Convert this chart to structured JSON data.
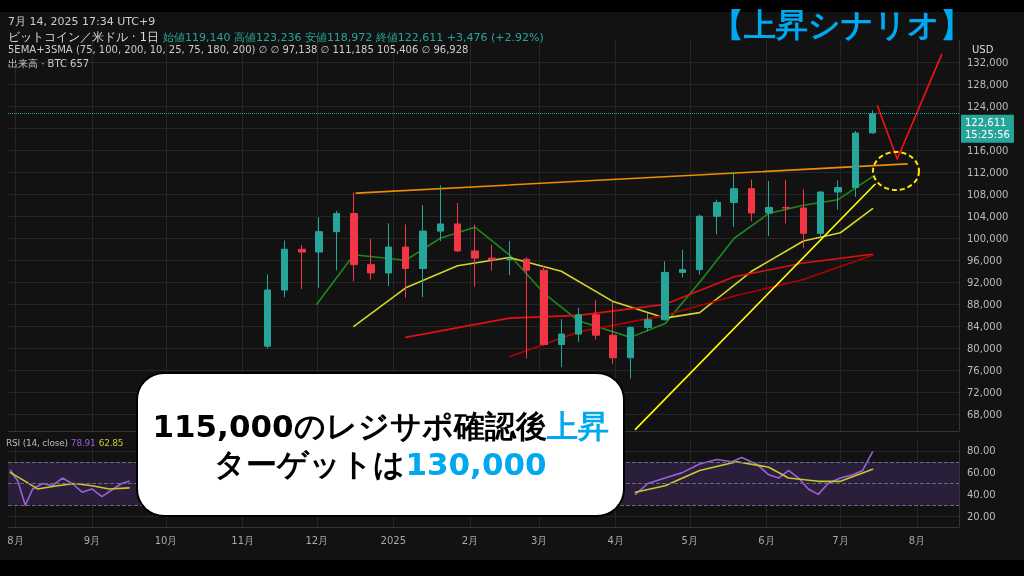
{
  "chart_data": [
    {
      "type": "candlestick",
      "title": "ビットコイン／米ドル · 1日",
      "subtitle": "7月 14, 2025 17:34 UTC+9",
      "ylabel": "USD",
      "x": [
        "2024-11-11",
        "2024-11-18",
        "2024-11-25",
        "2024-12-02",
        "2024-12-09",
        "2024-12-16",
        "2024-12-23",
        "2024-12-30",
        "2025-01-06",
        "2025-01-13",
        "2025-01-20",
        "2025-01-27",
        "2025-02-03",
        "2025-02-10",
        "2025-02-17",
        "2025-02-24",
        "2025-03-03",
        "2025-03-10",
        "2025-03-17",
        "2025-03-24",
        "2025-03-31",
        "2025-04-07",
        "2025-04-14",
        "2025-04-21",
        "2025-04-28",
        "2025-05-05",
        "2025-05-12",
        "2025-05-19",
        "2025-05-26",
        "2025-06-02",
        "2025-06-09",
        "2025-06-16",
        "2025-06-23",
        "2025-06-30",
        "2025-07-07",
        "2025-07-14"
      ],
      "ohlc": [
        [
          80400,
          93400,
          80000,
          90600
        ],
        [
          90600,
          99600,
          89300,
          98000
        ],
        [
          98000,
          98800,
          90800,
          97500
        ],
        [
          97500,
          103800,
          91000,
          101200
        ],
        [
          101200,
          105000,
          94200,
          104500
        ],
        [
          104500,
          108300,
          92200,
          95200
        ],
        [
          95200,
          99900,
          92500,
          93700
        ],
        [
          93700,
          102700,
          91300,
          98400
        ],
        [
          98400,
          102500,
          89200,
          94500
        ],
        [
          94500,
          106000,
          89300,
          101300
        ],
        [
          101300,
          109600,
          99500,
          102600
        ],
        [
          102600,
          106400,
          97500,
          97700
        ],
        [
          97700,
          102500,
          91200,
          96400
        ],
        [
          96400,
          98800,
          94100,
          96100
        ],
        [
          96100,
          99500,
          93300,
          96200
        ],
        [
          96200,
          96500,
          78200,
          94200
        ],
        [
          94200,
          95000,
          80500,
          80700
        ],
        [
          80700,
          85300,
          76600,
          82600
        ],
        [
          82600,
          87400,
          81200,
          86100
        ],
        [
          86100,
          88800,
          81600,
          82400
        ],
        [
          82400,
          88500,
          77100,
          78300
        ],
        [
          78300,
          84000,
          74500,
          83800
        ],
        [
          83800,
          86400,
          83100,
          85200
        ],
        [
          85200,
          95800,
          85100,
          93800
        ],
        [
          93800,
          97900,
          92900,
          94300
        ],
        [
          94300,
          104300,
          93400,
          104000
        ],
        [
          104000,
          107000,
          100700,
          106500
        ],
        [
          106500,
          112000,
          102100,
          109000
        ],
        [
          109000,
          110700,
          103100,
          104600
        ],
        [
          104600,
          110400,
          100400,
          105600
        ],
        [
          105600,
          110600,
          102700,
          105500
        ],
        [
          105500,
          108900,
          98200,
          100900
        ],
        [
          100900,
          108500,
          100200,
          108400
        ],
        [
          108400,
          110500,
          105200,
          109200
        ],
        [
          109200,
          119500,
          107500,
          119100
        ],
        [
          119140,
          123236,
          118972,
          122611
        ]
      ],
      "series": [
        {
          "type": "line",
          "color": "#1b8a1b",
          "x": [
            "2024-12-01",
            "2024-12-16",
            "2025-01-06",
            "2025-01-20",
            "2025-02-03",
            "2025-02-17",
            "2025-03-03",
            "2025-03-17",
            "2025-04-07",
            "2025-04-21",
            "2025-05-05",
            "2025-05-19",
            "2025-06-02",
            "2025-06-16",
            "2025-06-30",
            "2025-07-14"
          ],
          "values": [
            88000,
            97000,
            96000,
            100000,
            102000,
            97000,
            90000,
            85000,
            82000,
            84500,
            92000,
            100000,
            104500,
            106000,
            107000,
            111200
          ]
        },
        {
          "type": "line",
          "color": "#d4d42a",
          "x": [
            "2024-12-16",
            "2025-01-06",
            "2025-01-27",
            "2025-02-17",
            "2025-03-10",
            "2025-03-31",
            "2025-04-21",
            "2025-05-05",
            "2025-05-26",
            "2025-06-16",
            "2025-07-01",
            "2025-07-14"
          ],
          "values": [
            84000,
            91000,
            95000,
            96500,
            94000,
            88500,
            85500,
            86500,
            94000,
            99500,
            101000,
            105400
          ]
        },
        {
          "type": "line",
          "color": "#e01010",
          "x": [
            "2025-01-06",
            "2025-02-17",
            "2025-03-17",
            "2025-04-21",
            "2025-05-19",
            "2025-06-16",
            "2025-07-14"
          ],
          "values": [
            82000,
            85500,
            86000,
            88000,
            93000,
            95500,
            97100
          ]
        },
        {
          "type": "line",
          "color": "#b00000",
          "x": [
            "2025-02-17",
            "2025-03-17",
            "2025-04-21",
            "2025-05-19",
            "2025-06-16",
            "2025-07-14"
          ],
          "values": [
            78500,
            83000,
            86000,
            89500,
            92500,
            96900
          ]
        },
        {
          "type": "line",
          "color": "#f08c00",
          "x": [
            "2024-12-17",
            "2025-07-28"
          ],
          "values": [
            108200,
            113500
          ]
        },
        {
          "type": "line",
          "color": "#ffff00",
          "x": [
            "2025-04-09",
            "2025-07-15"
          ],
          "values": [
            65300,
            109800
          ]
        },
        {
          "type": "line",
          "color": "#ff1010",
          "x": [
            "2025-07-16",
            "2025-07-24",
            "2025-08-11"
          ],
          "values": [
            124000,
            114400,
            133400
          ]
        }
      ],
      "xlim": [
        "2024-07-29",
        "2025-08-18"
      ],
      "xticks": [
        {
          "value": "2024-08-01",
          "label": null
        },
        {
          "value": "2024-09-01",
          "label": null
        },
        {
          "value": "2024-10-01",
          "label": null
        },
        {
          "value": "2024-11-01",
          "label": null
        },
        {
          "value": "2024-12-01",
          "label": null
        },
        {
          "value": "2025-01-01",
          "label": null
        },
        {
          "value": "2025-02-01",
          "label": null
        },
        {
          "value": "2025-03-01",
          "label": null
        },
        {
          "value": "2025-04-01",
          "label": null
        },
        {
          "value": "2025-05-01",
          "label": null
        },
        {
          "value": "2025-06-01",
          "label": null
        },
        {
          "value": "2025-07-01",
          "label": null
        },
        {
          "value": "2025-08-01",
          "label": null
        }
      ],
      "ylim": [
        65000,
        136000
      ],
      "yticks": [
        {
          "value": 68000,
          "label": "68,000"
        },
        {
          "value": 72000,
          "label": "72,000"
        },
        {
          "value": 76000,
          "label": "76,000"
        },
        {
          "value": 80000,
          "label": "80,000"
        },
        {
          "value": 84000,
          "label": "84,000"
        },
        {
          "value": 88000,
          "label": "88,000"
        },
        {
          "value": 92000,
          "label": "92,000"
        },
        {
          "value": 96000,
          "label": "96,000"
        },
        {
          "value": 100000,
          "label": "100,000"
        },
        {
          "value": 104000,
          "label": "104,000"
        },
        {
          "value": 108000,
          "label": "108,000"
        },
        {
          "value": 112000,
          "label": "112,000"
        },
        {
          "value": 116000,
          "label": "116,000"
        },
        {
          "value": 120000,
          "label": null
        },
        {
          "value": 124000,
          "label": "124,000"
        },
        {
          "value": 128000,
          "label": "128,000"
        },
        {
          "value": 132000,
          "label": "132,000"
        }
      ],
      "ref_lines": [
        {
          "axis": "y",
          "value": 122611,
          "label": "122,611\n15:25:56",
          "color": "#26a69a",
          "line_style": "dotted"
        }
      ],
      "annotations": [
        "始値119,140 高値123,236 安値118,972 終値122,611 +3,476 (+2.92%)",
        "5EMA+3SMA (75, 100, 200, 10, 25, 75, 180, 200) ∅ ∅ 97,138 ∅ 111,185 105,406 ∅ 96,928",
        "出来高 · BTC 657",
        "【上昇シナリオ】",
        "115,000のレジサポ確認後",
        "上昇",
        "ターゲットは",
        "130,000"
      ],
      "grid": true,
      "tick_labels": "y"
    },
    {
      "type": "line",
      "title": "RSI (14, close)",
      "series": [
        {
          "color": "#9c5fd6",
          "x": [
            "2024-07-30",
            "2024-08-02",
            "2024-08-05",
            "2024-08-08",
            "2024-08-12",
            "2024-08-16",
            "2024-08-20",
            "2024-08-24",
            "2024-08-28",
            "2024-09-01",
            "2024-09-05",
            "2024-09-09",
            "2024-09-13",
            "2024-09-16",
            "2025-04-05",
            "2025-04-09",
            "2025-04-14",
            "2025-04-21",
            "2025-04-28",
            "2025-05-05",
            "2025-05-12",
            "2025-05-18",
            "2025-05-22",
            "2025-05-28",
            "2025-06-02",
            "2025-06-06",
            "2025-06-10",
            "2025-06-14",
            "2025-06-18",
            "2025-06-22",
            "2025-06-26",
            "2025-07-01",
            "2025-07-06",
            "2025-07-10",
            "2025-07-14"
          ],
          "values": [
            62,
            52,
            30,
            45,
            50,
            48,
            55,
            50,
            42,
            45,
            38,
            44,
            50,
            52,
            null,
            40,
            50,
            55,
            60,
            68,
            72,
            70,
            74,
            68,
            58,
            55,
            62,
            55,
            45,
            40,
            50,
            55,
            58,
            62,
            79
          ]
        },
        {
          "color": "#c8c832",
          "x": [
            "2024-07-30",
            "2024-08-05",
            "2024-08-10",
            "2024-08-18",
            "2024-08-25",
            "2024-09-01",
            "2024-09-08",
            "2024-09-16",
            "2025-04-05",
            "2025-04-09",
            "2025-04-21",
            "2025-05-05",
            "2025-05-20",
            "2025-06-02",
            "2025-06-10",
            "2025-06-22",
            "2025-07-01",
            "2025-07-14"
          ],
          "values": [
            60,
            52,
            45,
            48,
            50,
            48,
            45,
            46,
            null,
            42,
            48,
            62,
            70,
            65,
            55,
            52,
            52,
            63
          ]
        }
      ],
      "xlim": [
        "2024-07-29",
        "2025-08-18"
      ],
      "xticks": [
        {
          "value": "2024-08-01",
          "label": "8月"
        },
        {
          "value": "2024-09-01",
          "label": "9月"
        },
        {
          "value": "2024-10-01",
          "label": "10月"
        },
        {
          "value": "2024-11-01",
          "label": "11月"
        },
        {
          "value": "2024-12-01",
          "label": "12月"
        },
        {
          "value": "2025-01-01",
          "label": "2025"
        },
        {
          "value": "2025-02-01",
          "label": "2月"
        },
        {
          "value": "2025-03-01",
          "label": "3月"
        },
        {
          "value": "2025-04-01",
          "label": "4月"
        },
        {
          "value": "2025-05-01",
          "label": "5月"
        },
        {
          "value": "2025-06-01",
          "label": "6月"
        },
        {
          "value": "2025-07-01",
          "label": "7月"
        },
        {
          "value": "2025-08-01",
          "label": "8月"
        }
      ],
      "ylim": [
        10,
        90
      ],
      "yticks": [
        {
          "value": 20,
          "label": "20.00"
        },
        {
          "value": 40,
          "label": "40.00"
        },
        {
          "value": 60,
          "label": "60.00"
        },
        {
          "value": 80,
          "label": "80.00"
        }
      ],
      "ref_lines": [
        {
          "axis": "y",
          "value": 70,
          "label": null,
          "line_style": "dashed",
          "color": "#6a6a7a"
        },
        {
          "axis": "y",
          "value": 50,
          "label": null,
          "line_style": "dashed",
          "color": "#6a6a7a"
        },
        {
          "axis": "y",
          "value": 30,
          "label": null,
          "line_style": "dashed",
          "color": "#6a6a7a"
        }
      ],
      "bands": [
        {
          "axis": "y",
          "from": 30,
          "to": 70,
          "label": null,
          "color": "#2a1f3a"
        }
      ],
      "annotations": [
        "78.91",
        "62.85"
      ],
      "grid": true
    }
  ]
}
